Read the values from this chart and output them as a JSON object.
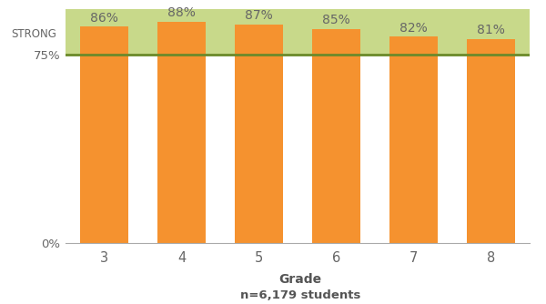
{
  "categories": [
    "3",
    "4",
    "5",
    "6",
    "7",
    "8"
  ],
  "values": [
    86,
    88,
    87,
    85,
    82,
    81
  ],
  "bar_color": "#F5922F",
  "strong_threshold": 75,
  "strong_label": "STRONG",
  "green_bg_color": "#C8D98A",
  "green_line_color": "#6B8A2A",
  "ylim": [
    0,
    93
  ],
  "yticks": [
    0,
    75
  ],
  "ytick_labels": [
    "0%",
    "75%"
  ],
  "xlabel": "Grade",
  "xlabel2": "n=6,179 students",
  "value_label_color": "#666666",
  "value_label_fontsize": 10,
  "xlabel_fontsize": 10,
  "xlabel2_fontsize": 9.5,
  "strong_fontsize": 8.5,
  "ytick_fontsize": 9.5,
  "xtick_fontsize": 10.5,
  "bar_width": 0.62
}
